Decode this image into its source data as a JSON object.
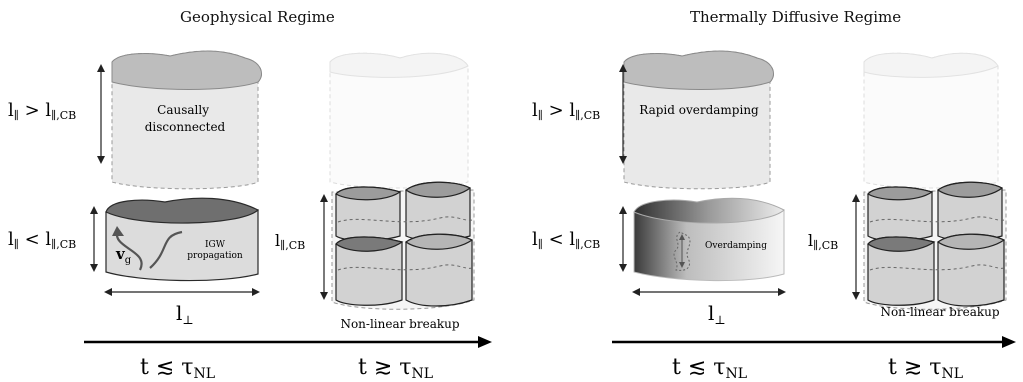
{
  "panels": [
    {
      "title": "Geophysical Regime",
      "top_left_label": "Causally disconnected",
      "bottom_left_label": "IGW propagation",
      "vector_label": "v",
      "vector_subscript": "g",
      "right_caption": "Non-linear breakup"
    },
    {
      "title": "Thermally Diffusive Regime",
      "top_left_label": "Rapid overdamping",
      "bottom_left_label": "Overdamping",
      "right_caption": "Non-linear breakup"
    }
  ],
  "labels": {
    "l_par_gt": "l∥ > l∥,CB",
    "l_par_lt": "l∥ < l∥,CB",
    "l_par_cb": "l∥,CB",
    "l_perp": "l⊥",
    "t_lt": "t ≲ τNL",
    "t_gt": "t ≳ τNL"
  },
  "colors": {
    "dark_top": "#6f6f6f",
    "light_body": "#e6e6e6",
    "pale_body": "#f3f3f3",
    "mid_body": "#cfcfcf",
    "outline": "#2a2a2a"
  }
}
